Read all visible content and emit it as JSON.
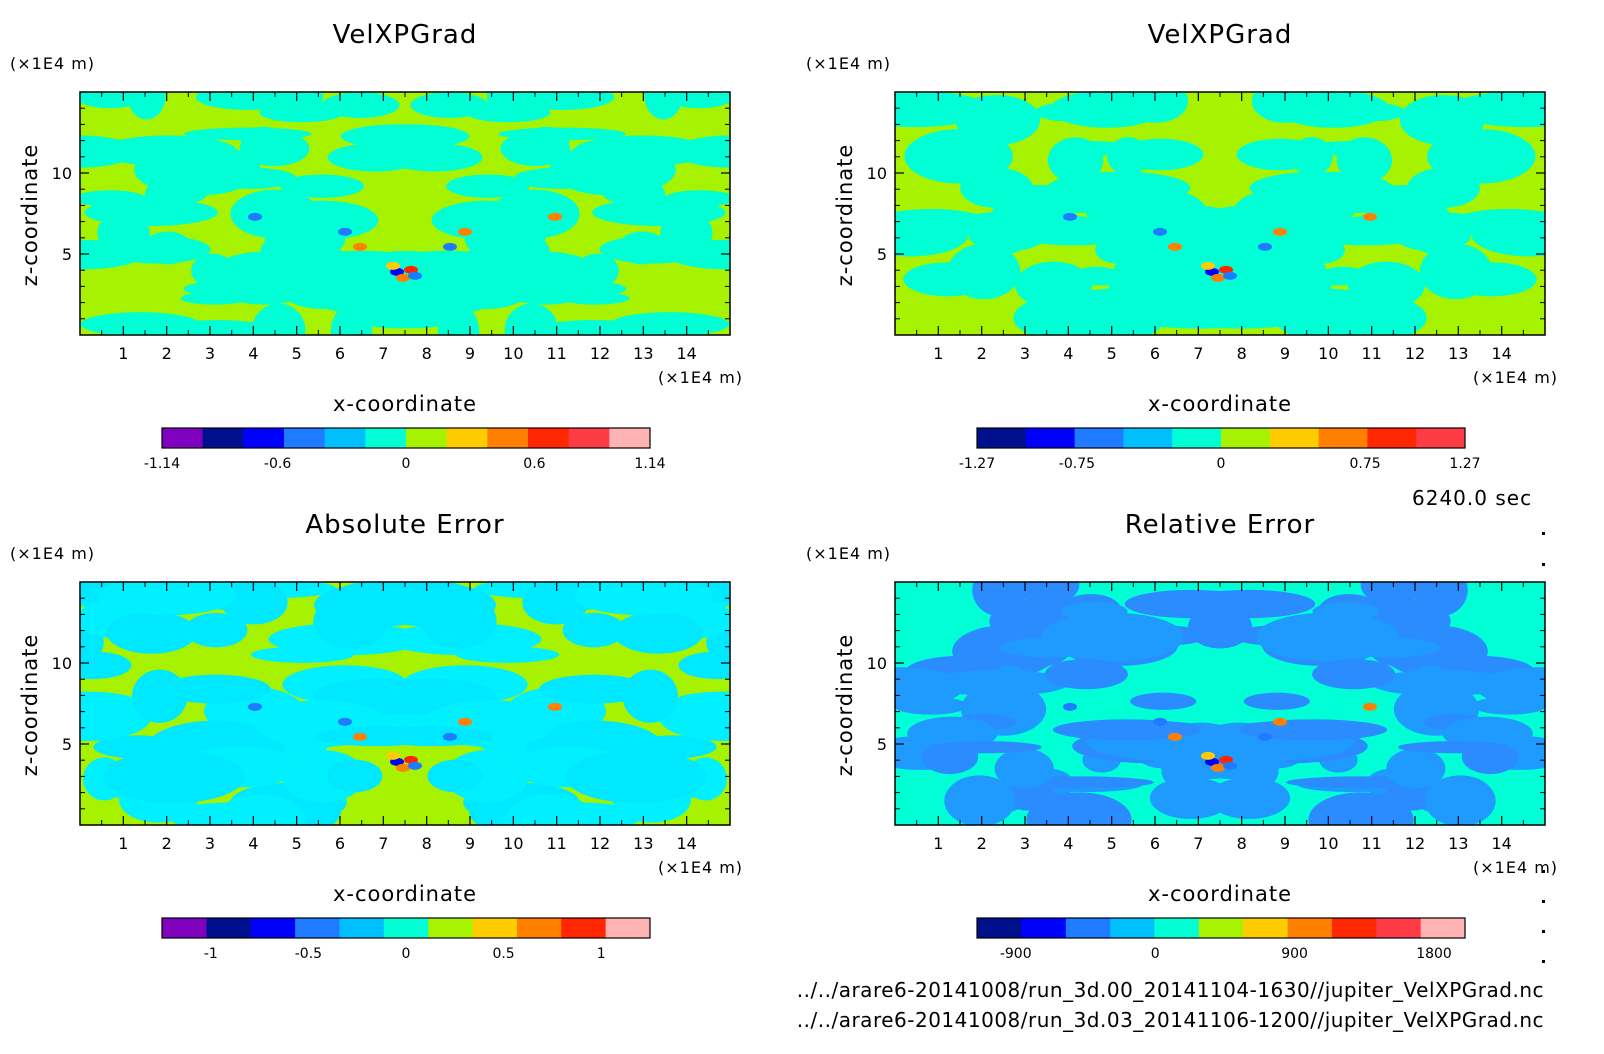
{
  "time_label": "6240.0 sec",
  "file_paths": [
    "../../arare6-20141008/run_3d.00_20141104-1630//jupiter_VelXPGrad.nc",
    "../../arare6-20141008/run_3d.03_20141106-1200//jupiter_VelXPGrad.nc"
  ],
  "chart_data": [
    {
      "type": "heatmap",
      "title": "VelXPGrad",
      "xlabel": "x-coordinate",
      "ylabel": "z-coordinate",
      "x_unit": "(×1E4 m)",
      "y_unit": "(×1E4 m)",
      "xlim": [
        0,
        15
      ],
      "ylim": [
        0,
        15
      ],
      "x_ticks": [
        "1",
        "2",
        "3",
        "4",
        "5",
        "6",
        "7",
        "8",
        "9",
        "10",
        "11",
        "12",
        "13",
        "14"
      ],
      "y_ticks": [
        "5",
        "10"
      ],
      "colorbar": {
        "colors": [
          "#8000c0",
          "#00108c",
          "#0000ff",
          "#1f7bff",
          "#00bfff",
          "#00ffd5",
          "#a6f200",
          "#ffcc00",
          "#ff8000",
          "#ff2600",
          "#ff3b45",
          "#ffb3b3"
        ],
        "tick_labels": [
          "-1.14",
          "-0.6",
          "0",
          "0.6",
          "1.14"
        ],
        "tick_values": [
          -1.14,
          -0.6,
          0,
          0.6,
          1.14
        ],
        "range": [
          -1.14,
          1.14
        ]
      }
    },
    {
      "type": "heatmap",
      "title": "VelXPGrad",
      "xlabel": "x-coordinate",
      "ylabel": "z-coordinate",
      "x_unit": "(×1E4 m)",
      "y_unit": "(×1E4 m)",
      "xlim": [
        0,
        15
      ],
      "ylim": [
        0,
        15
      ],
      "x_ticks": [
        "1",
        "2",
        "3",
        "4",
        "5",
        "6",
        "7",
        "8",
        "9",
        "10",
        "11",
        "12",
        "13",
        "14"
      ],
      "y_ticks": [
        "5",
        "10"
      ],
      "colorbar": {
        "colors": [
          "#00108c",
          "#0000ff",
          "#1f7bff",
          "#00bfff",
          "#00ffd5",
          "#a6f200",
          "#ffcc00",
          "#ff8000",
          "#ff2600",
          "#ff3b45"
        ],
        "tick_labels": [
          "-1.27",
          "-0.75",
          "0",
          "0.75",
          "1.27"
        ],
        "tick_values": [
          -1.27,
          -0.75,
          0,
          0.75,
          1.27
        ],
        "range": [
          -1.27,
          1.27
        ]
      }
    },
    {
      "type": "heatmap",
      "title": "Absolute Error",
      "xlabel": "x-coordinate",
      "ylabel": "z-coordinate",
      "x_unit": "(×1E4 m)",
      "y_unit": "(×1E4 m)",
      "xlim": [
        0,
        15
      ],
      "ylim": [
        0,
        15
      ],
      "x_ticks": [
        "1",
        "2",
        "3",
        "4",
        "5",
        "6",
        "7",
        "8",
        "9",
        "10",
        "11",
        "12",
        "13",
        "14"
      ],
      "y_ticks": [
        "5",
        "10"
      ],
      "colorbar": {
        "colors": [
          "#8000c0",
          "#00108c",
          "#0000ff",
          "#1f7bff",
          "#00bfff",
          "#00ffd5",
          "#a6f200",
          "#ffcc00",
          "#ff8000",
          "#ff2600",
          "#ffb3b3"
        ],
        "tick_labels": [
          "-1",
          "-0.5",
          "0",
          "0.5",
          "1"
        ],
        "tick_values": [
          -1,
          -0.5,
          0,
          0.5,
          1
        ],
        "range": [
          -1.25,
          1.25
        ]
      }
    },
    {
      "type": "heatmap",
      "title": "Relative Error",
      "xlabel": "x-coordinate",
      "ylabel": "z-coordinate",
      "x_unit": "(×1E4 m)",
      "y_unit": "(×1E4 m)",
      "xlim": [
        0,
        15
      ],
      "ylim": [
        0,
        15
      ],
      "x_ticks": [
        "1",
        "2",
        "3",
        "4",
        "5",
        "6",
        "7",
        "8",
        "9",
        "10",
        "11",
        "12",
        "13",
        "14"
      ],
      "y_ticks": [
        "5",
        "10"
      ],
      "colorbar": {
        "colors": [
          "#00108c",
          "#0000ff",
          "#1f7bff",
          "#00bfff",
          "#00ffd5",
          "#a6f200",
          "#ffcc00",
          "#ff8000",
          "#ff2600",
          "#ff3b45",
          "#ffb3b3"
        ],
        "tick_labels": [
          "-900",
          "0",
          "900",
          "1800"
        ],
        "tick_values": [
          -900,
          0,
          900,
          1800
        ],
        "range": [
          -1150,
          2000
        ]
      }
    }
  ]
}
